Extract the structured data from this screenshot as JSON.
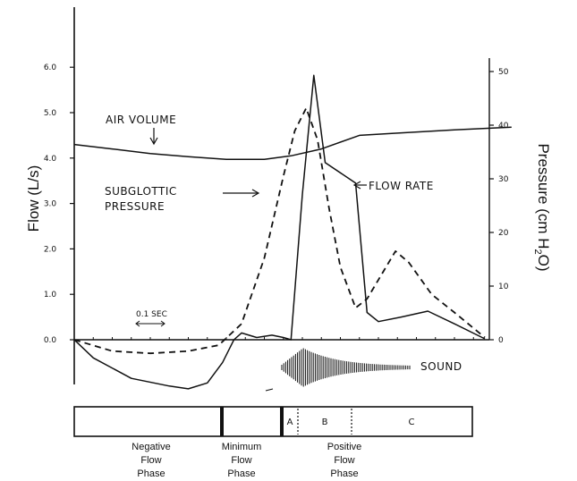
{
  "chart_data": {
    "type": "line",
    "left_axis": {
      "label": "Flow (L/s)",
      "ticks": [
        "0.0",
        "1.0",
        "2.0",
        "3.0",
        "4.0",
        "5.0",
        "6.0"
      ],
      "ylim": [
        -1.2,
        6.0
      ]
    },
    "right_axis": {
      "label_prefix": "Pressure (cm H",
      "label_sub": "2",
      "label_suffix": "O)",
      "ticks": [
        "0",
        "10",
        "20",
        "30",
        "40",
        "50"
      ],
      "ylim": [
        0,
        55
      ]
    },
    "x_unit_label": "0.1 SEC",
    "series": [
      {
        "name": "AIR VOLUME",
        "style": "solid",
        "axis": "left",
        "points": [
          [
            0.0,
            4.3
          ],
          [
            0.1,
            4.2
          ],
          [
            0.2,
            4.1
          ],
          [
            0.3,
            4.03
          ],
          [
            0.4,
            3.97
          ],
          [
            0.5,
            3.97
          ],
          [
            0.57,
            4.05
          ],
          [
            0.65,
            4.2
          ],
          [
            0.75,
            4.5
          ],
          [
            0.85,
            4.55
          ],
          [
            1.0,
            4.62
          ],
          [
            1.15,
            4.68
          ]
        ]
      },
      {
        "name": "FLOW RATE",
        "style": "solid",
        "axis": "left",
        "points": [
          [
            0.0,
            0.0
          ],
          [
            0.05,
            -0.4
          ],
          [
            0.15,
            -0.85
          ],
          [
            0.25,
            -1.02
          ],
          [
            0.3,
            -1.08
          ],
          [
            0.35,
            -0.95
          ],
          [
            0.39,
            -0.5
          ],
          [
            0.42,
            0.0
          ],
          [
            0.44,
            0.15
          ],
          [
            0.48,
            0.05
          ],
          [
            0.52,
            0.1
          ],
          [
            0.55,
            0.05
          ],
          [
            0.57,
            0.0
          ],
          [
            0.6,
            3.2
          ],
          [
            0.63,
            5.82
          ],
          [
            0.66,
            3.9
          ],
          [
            0.74,
            3.45
          ],
          [
            0.77,
            0.6
          ],
          [
            0.8,
            0.4
          ],
          [
            0.86,
            0.5
          ],
          [
            0.93,
            0.63
          ],
          [
            1.0,
            0.35
          ],
          [
            1.08,
            0.02
          ]
        ]
      },
      {
        "name": "SUBGLOTTIC PRESSURE",
        "style": "dashed",
        "axis": "right",
        "points": [
          [
            0.0,
            0.0
          ],
          [
            0.1,
            -0.25
          ],
          [
            0.2,
            -0.3
          ],
          [
            0.3,
            -0.25
          ],
          [
            0.38,
            -0.12
          ],
          [
            0.44,
            0.35
          ],
          [
            0.5,
            1.8
          ],
          [
            0.55,
            3.6
          ],
          [
            0.58,
            4.6
          ],
          [
            0.61,
            5.1
          ],
          [
            0.64,
            4.4
          ],
          [
            0.67,
            2.9
          ],
          [
            0.7,
            1.6
          ],
          [
            0.74,
            0.7
          ],
          [
            0.77,
            0.9
          ],
          [
            0.82,
            1.6
          ],
          [
            0.845,
            1.95
          ],
          [
            0.88,
            1.7
          ],
          [
            0.94,
            1.0
          ],
          [
            1.0,
            0.6
          ],
          [
            1.08,
            0.05
          ]
        ]
      }
    ],
    "annotations": [
      "AIR VOLUME",
      "SUBGLOTTIC",
      "PRESSURE",
      "FLOW RATE",
      "SOUND"
    ],
    "phases": [
      {
        "label_lines": [
          "Negative",
          "Flow",
          "Phase"
        ]
      },
      {
        "label_lines": [
          "Minimum",
          "Flow",
          "Phase"
        ]
      },
      {
        "label_lines": [
          "Positive",
          "Flow",
          "Phase"
        ]
      }
    ],
    "positive_segments": [
      "A",
      "B",
      "C"
    ]
  }
}
